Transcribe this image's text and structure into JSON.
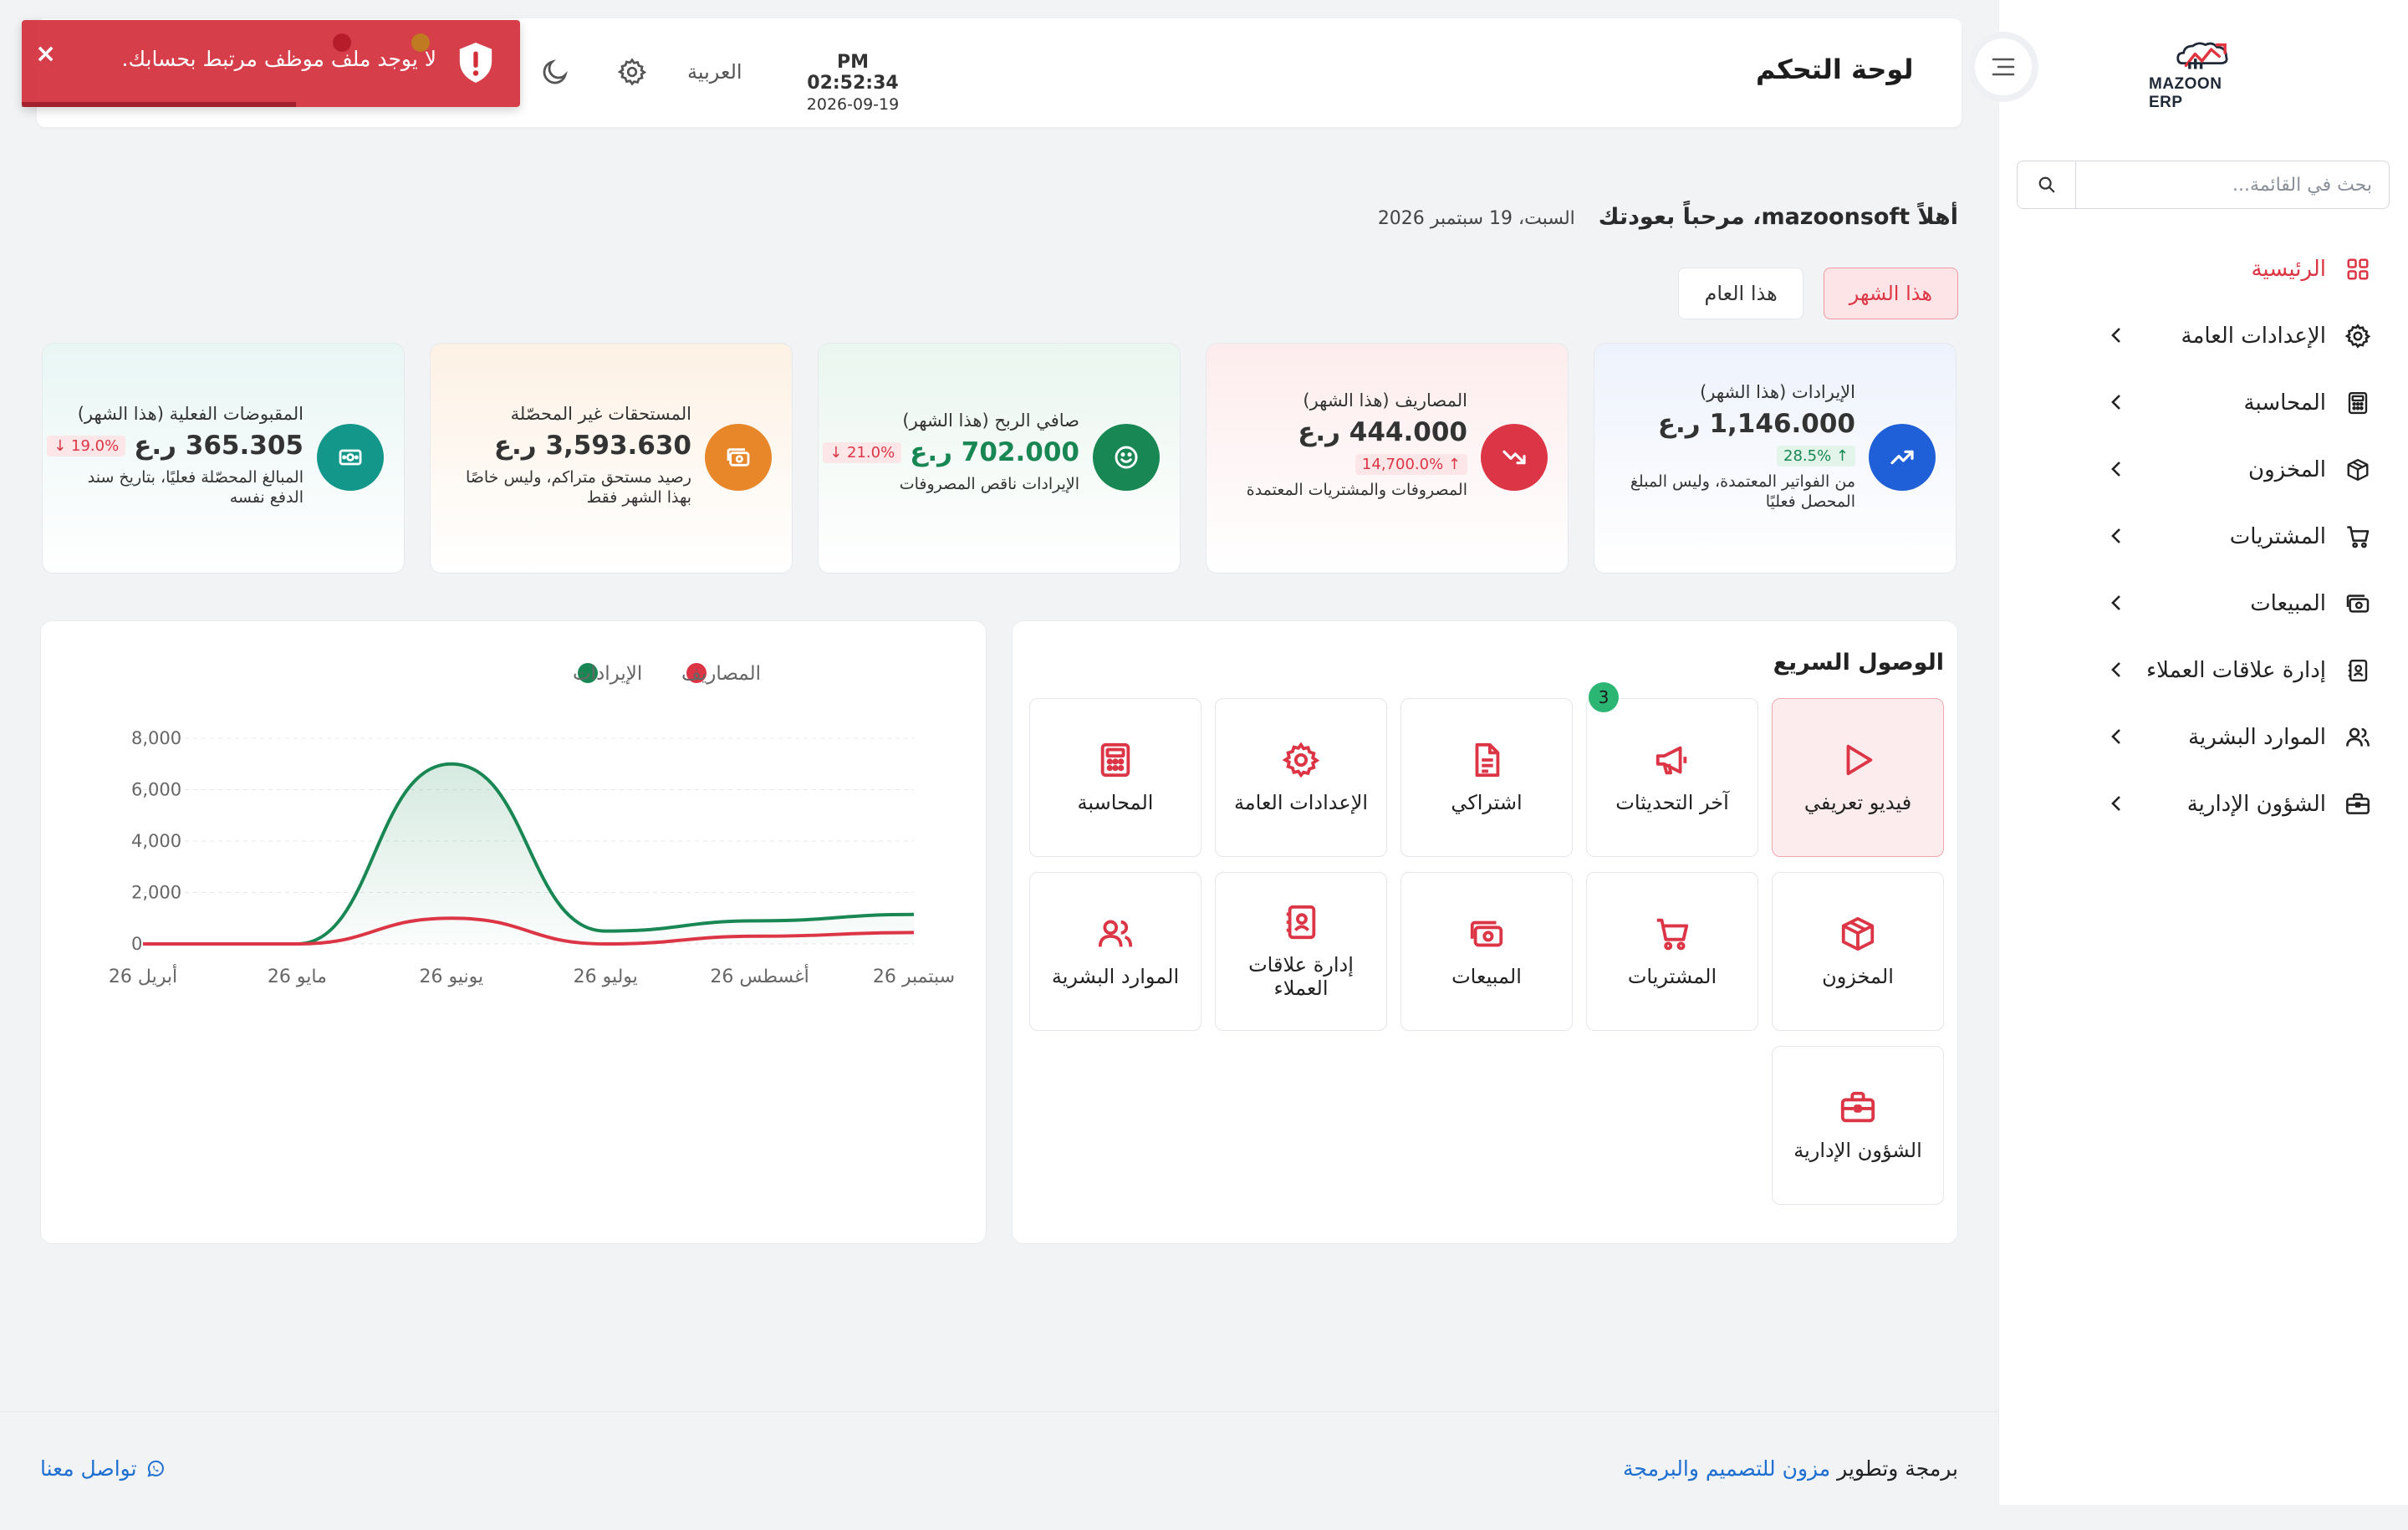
{
  "sidebar": {
    "logo_text": "MAZOON ERP",
    "search_placeholder": "بحث في القائمة...",
    "items": [
      {
        "label": "الرئيسية",
        "icon": "grid-icon",
        "active": true
      },
      {
        "label": "الإعدادات العامة",
        "icon": "gear-icon"
      },
      {
        "label": "المحاسبة",
        "icon": "calculator-icon"
      },
      {
        "label": "المخزون",
        "icon": "box-icon"
      },
      {
        "label": "المشتريات",
        "icon": "cart-icon"
      },
      {
        "label": "المبيعات",
        "icon": "cash-icon"
      },
      {
        "label": "إدارة علاقات العملاء",
        "icon": "contacts-icon"
      },
      {
        "label": "الموارد البشرية",
        "icon": "users-icon"
      },
      {
        "label": "الشؤون الإدارية",
        "icon": "briefcase-icon"
      }
    ]
  },
  "header": {
    "title": "لوحة التحكم",
    "time": "PM 02:52:34",
    "date": "2026-09-19",
    "language": "العربية"
  },
  "toast": {
    "message": "لا يوجد ملف موظف مرتبط بحسابك.",
    "close": "×"
  },
  "welcome": {
    "greeting": "أهلاً mazoonsoft، مرحباً بعودتك",
    "today": "السبت، 19 سبتمبر 2026"
  },
  "period_tabs": [
    {
      "label": "هذا الشهر",
      "active": true
    },
    {
      "label": "هذا العام",
      "active": false
    }
  ],
  "kpis": [
    {
      "title": "الإيرادات (هذا الشهر)",
      "value": "1,146.000 ر.ع",
      "trend": "↑ 28.5%",
      "trend_dir": "up",
      "note": "من الفواتير المعتمدة، وليس المبلغ المحصل فعليًا",
      "icon": "trend-up-icon",
      "color": "#1f5fd8",
      "bg": "linear-gradient(180deg,#eef2fc,#ffffff)"
    },
    {
      "title": "المصاريف (هذا الشهر)",
      "value": "444.000 ر.ع",
      "trend": "↑ 14,700.0%",
      "trend_dir": "down",
      "note": "المصروفات والمشتريات المعتمدة",
      "icon": "trend-down-icon",
      "color": "#dc3545",
      "bg": "linear-gradient(180deg,#fdeced,#ffffff)"
    },
    {
      "title": "صافي الربح (هذا الشهر)",
      "value": "702.000 ر.ع",
      "trend": "↓ 21.0%",
      "trend_dir": "down",
      "note": "الإيرادات ناقص المصروفات",
      "icon": "smile-icon",
      "color": "#198754",
      "bg": "linear-gradient(180deg,#eaf6ef,#ffffff)",
      "value_color": "#198754"
    },
    {
      "title": "المستحقات غير المحصّلة",
      "value": "3,593.630 ر.ع",
      "trend": "",
      "trend_dir": "",
      "note": "رصيد مستحق متراكم، وليس خاصًا بهذا الشهر فقط",
      "icon": "cash-icon",
      "color": "#e8862a",
      "bg": "linear-gradient(180deg,#fdf1e4,#ffffff)"
    },
    {
      "title": "المقبوضات الفعلية (هذا الشهر)",
      "value": "365.305 ر.ع",
      "trend": "↓ 19.0%",
      "trend_dir": "down",
      "note": "المبالغ المحصّلة فعليًا، بتاريخ سند الدفع نفسه",
      "icon": "money-icon",
      "color": "#13978a",
      "bg": "linear-gradient(180deg,#e8f6f4,#ffffff)"
    }
  ],
  "quick_access": {
    "title": "الوصول السريع",
    "tiles": [
      {
        "label": "فيديو تعريفي",
        "icon": "play-icon",
        "active": true
      },
      {
        "label": "آخر التحديثات",
        "icon": "megaphone-icon",
        "badge": "3"
      },
      {
        "label": "اشتراكي",
        "icon": "document-icon"
      },
      {
        "label": "الإعدادات العامة",
        "icon": "gear-icon"
      },
      {
        "label": "المحاسبة",
        "icon": "calculator-icon"
      },
      {
        "label": "المخزون",
        "icon": "box-icon"
      },
      {
        "label": "المشتريات",
        "icon": "cart-icon"
      },
      {
        "label": "المبيعات",
        "icon": "cash-icon"
      },
      {
        "label": "إدارة علاقات العملاء",
        "icon": "contacts-icon"
      },
      {
        "label": "الموارد البشرية",
        "icon": "users-icon"
      },
      {
        "label": "الشؤون الإدارية",
        "icon": "briefcase-icon"
      }
    ]
  },
  "chart_data": {
    "type": "area",
    "x": [
      "أبريل 26",
      "مايو 26",
      "يونيو 26",
      "يوليو 26",
      "أغسطس 26",
      "سبتمبر 26"
    ],
    "series": [
      {
        "name": "الإيرادات",
        "color": "#198754",
        "values": [
          0,
          0,
          7000,
          500,
          900,
          1146
        ]
      },
      {
        "name": "المصاريف",
        "color": "#dc3545",
        "values": [
          0,
          0,
          1000,
          0,
          300,
          444
        ]
      }
    ],
    "y_ticks": [
      "8,000",
      "6,000",
      "4,000",
      "2,000",
      "0"
    ],
    "ylim": [
      0,
      8000
    ],
    "grid": true,
    "legend_position": "top"
  },
  "footer": {
    "credit_prefix": "برمجة وتطوير",
    "credit_brand": "مزون للتصميم والبرمجة",
    "contact": "تواصل معنا"
  }
}
